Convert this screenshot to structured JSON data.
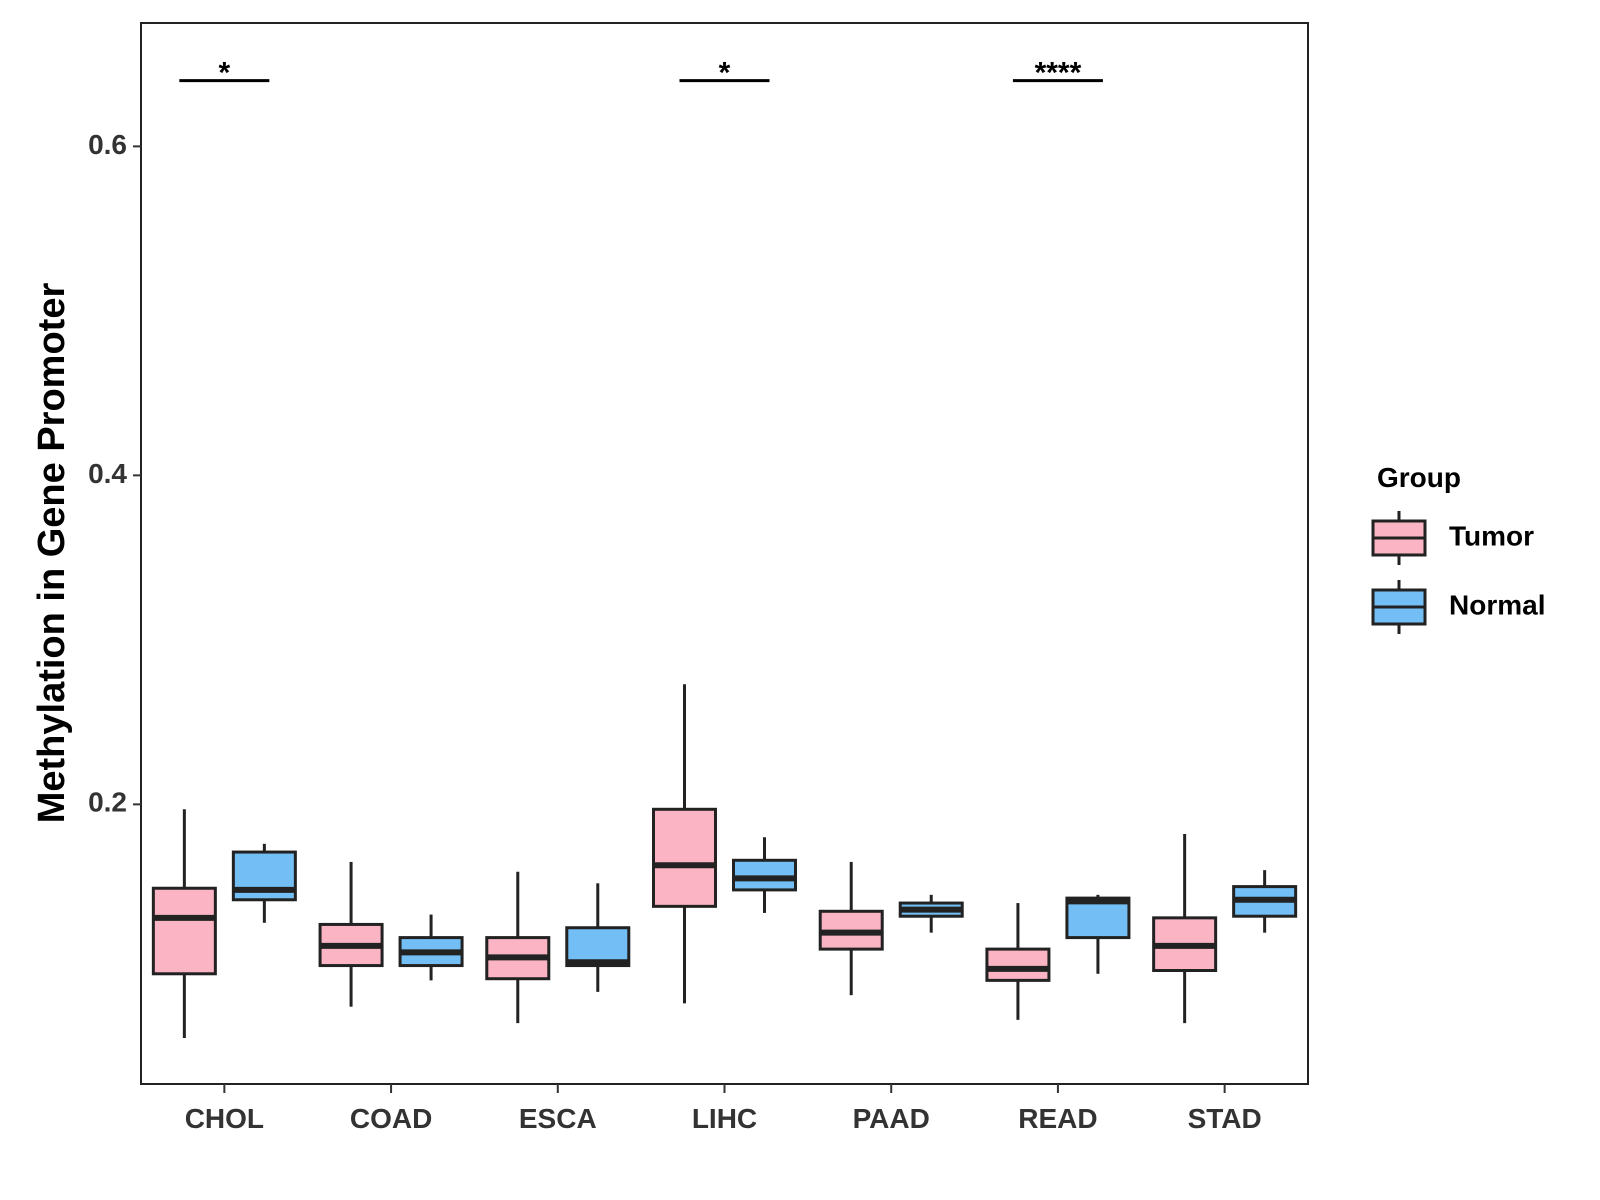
{
  "chart_data": {
    "type": "boxplot",
    "title": "",
    "xlabel": "",
    "ylabel": "Methylation in Gene Promoter",
    "ylim": [
      0.03,
      0.675
    ],
    "yticks": [
      0.2,
      0.4,
      0.6
    ],
    "ytick_labels": [
      "0.2",
      "0.4",
      "0.6"
    ],
    "grid": false,
    "legend_position": "right",
    "legend": {
      "title": "Group",
      "entries": [
        {
          "name": "Tumor",
          "color": "#FBB4C3"
        },
        {
          "name": "Normal",
          "color": "#73BFF5"
        }
      ]
    },
    "categories": [
      "CHOL",
      "COAD",
      "ESCA",
      "LIHC",
      "PAAD",
      "READ",
      "STAD"
    ],
    "series": [
      {
        "name": "Tumor",
        "color": "#FBB4C3",
        "boxes": [
          {
            "min": 0.058,
            "q1": 0.097,
            "median": 0.131,
            "q3": 0.149,
            "max": 0.197
          },
          {
            "min": 0.077,
            "q1": 0.102,
            "median": 0.114,
            "q3": 0.127,
            "max": 0.165
          },
          {
            "min": 0.067,
            "q1": 0.094,
            "median": 0.107,
            "q3": 0.119,
            "max": 0.159
          },
          {
            "min": 0.079,
            "q1": 0.138,
            "median": 0.163,
            "q3": 0.197,
            "max": 0.273
          },
          {
            "min": 0.084,
            "q1": 0.112,
            "median": 0.122,
            "q3": 0.135,
            "max": 0.165
          },
          {
            "min": 0.069,
            "q1": 0.093,
            "median": 0.1,
            "q3": 0.112,
            "max": 0.14
          },
          {
            "min": 0.067,
            "q1": 0.099,
            "median": 0.114,
            "q3": 0.131,
            "max": 0.182
          }
        ]
      },
      {
        "name": "Normal",
        "color": "#73BFF5",
        "boxes": [
          {
            "min": 0.128,
            "q1": 0.142,
            "median": 0.148,
            "q3": 0.171,
            "max": 0.176
          },
          {
            "min": 0.093,
            "q1": 0.102,
            "median": 0.11,
            "q3": 0.119,
            "max": 0.133
          },
          {
            "min": 0.086,
            "q1": 0.102,
            "median": 0.104,
            "q3": 0.125,
            "max": 0.152
          },
          {
            "min": 0.134,
            "q1": 0.148,
            "median": 0.155,
            "q3": 0.166,
            "max": 0.18
          },
          {
            "min": 0.122,
            "q1": 0.132,
            "median": 0.136,
            "q3": 0.14,
            "max": 0.145
          },
          {
            "min": 0.097,
            "q1": 0.119,
            "median": 0.141,
            "q3": 0.143,
            "max": 0.145
          },
          {
            "min": 0.122,
            "q1": 0.132,
            "median": 0.142,
            "q3": 0.15,
            "max": 0.16
          }
        ]
      }
    ],
    "annotations": [
      {
        "category": "CHOL",
        "label": "*",
        "y": 0.64
      },
      {
        "category": "LIHC",
        "label": "*",
        "y": 0.64
      },
      {
        "category": "READ",
        "label": "****",
        "y": 0.64
      }
    ]
  }
}
